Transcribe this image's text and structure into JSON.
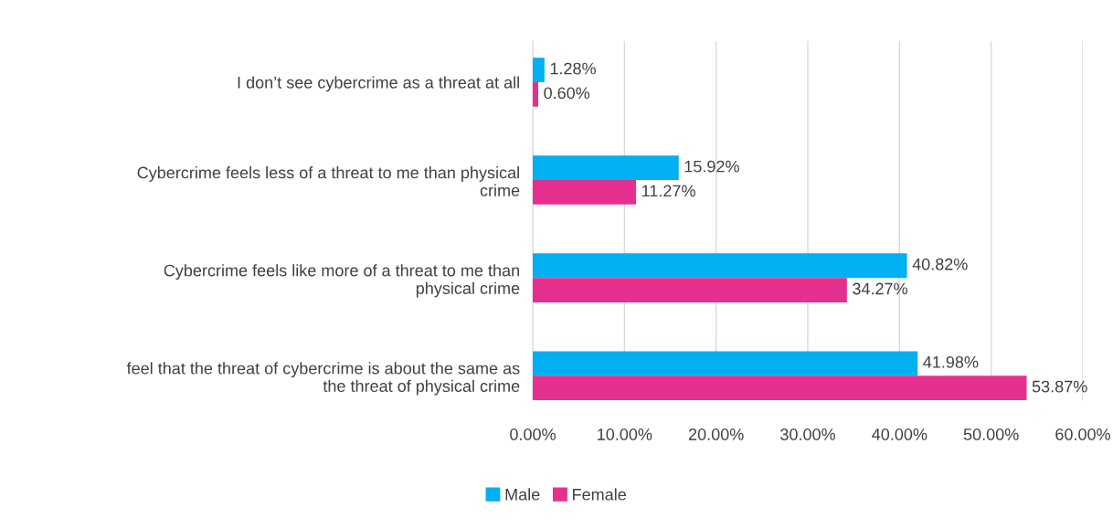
{
  "chart_data": {
    "type": "bar",
    "orientation": "horizontal",
    "categories": [
      "I don’t see cybercrime as a threat at all",
      "Cybercrime feels less of a threat to me than physical\ncrime",
      "Cybercrime feels like more of a threat to me than\nphysical crime",
      "feel that the threat of cybercrime is about the same as\nthe threat of physical crime"
    ],
    "series": [
      {
        "name": "Male",
        "color": "#00b0f0",
        "values": [
          1.28,
          15.92,
          40.82,
          41.98
        ],
        "value_labels": [
          "1.28%",
          "15.92%",
          "40.82%",
          "41.98%"
        ]
      },
      {
        "name": "Female",
        "color": "#e6308f",
        "values": [
          0.6,
          11.27,
          34.27,
          53.87
        ],
        "value_labels": [
          "0.60%",
          "11.27%",
          "34.27%",
          "53.87%"
        ]
      }
    ],
    "xlim": [
      0,
      60
    ],
    "xticks": [
      {
        "value": 0,
        "label": "0.00%"
      },
      {
        "value": 10,
        "label": "10.00%"
      },
      {
        "value": 20,
        "label": "20.00%"
      },
      {
        "value": 30,
        "label": "30.00%"
      },
      {
        "value": 40,
        "label": "40.00%"
      },
      {
        "value": 50,
        "label": "50.00%"
      },
      {
        "value": 60,
        "label": "60.00%"
      }
    ],
    "grid": "x",
    "legend": "bottom"
  }
}
